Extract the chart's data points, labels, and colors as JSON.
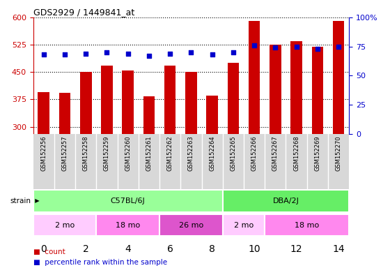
{
  "title": "GDS2929 / 1449841_at",
  "samples": [
    "GSM152256",
    "GSM152257",
    "GSM152258",
    "GSM152259",
    "GSM152260",
    "GSM152261",
    "GSM152262",
    "GSM152263",
    "GSM152264",
    "GSM152265",
    "GSM152266",
    "GSM152267",
    "GSM152268",
    "GSM152269",
    "GSM152270"
  ],
  "counts": [
    395,
    393,
    450,
    468,
    455,
    383,
    468,
    450,
    385,
    475,
    590,
    525,
    535,
    520,
    590
  ],
  "percentiles": [
    68,
    68,
    69,
    70,
    69,
    67,
    69,
    70,
    68,
    70,
    76,
    74,
    75,
    73,
    75
  ],
  "ylim_left": [
    280,
    600
  ],
  "ylim_right": [
    0,
    100
  ],
  "yticks_left": [
    300,
    375,
    450,
    525,
    600
  ],
  "yticks_right": [
    0,
    25,
    50,
    75,
    100
  ],
  "bar_color": "#cc0000",
  "dot_color": "#0000cc",
  "strain_groups": [
    {
      "label": "C57BL/6J",
      "start": 0,
      "end": 9,
      "color": "#99ff99"
    },
    {
      "label": "DBA/2J",
      "start": 9,
      "end": 15,
      "color": "#66ee66"
    }
  ],
  "age_groups": [
    {
      "label": "2 mo",
      "start": 0,
      "end": 3,
      "color": "#ffccff"
    },
    {
      "label": "18 mo",
      "start": 3,
      "end": 6,
      "color": "#ff88ee"
    },
    {
      "label": "26 mo",
      "start": 6,
      "end": 9,
      "color": "#dd55cc"
    },
    {
      "label": "2 mo",
      "start": 9,
      "end": 11,
      "color": "#ffccff"
    },
    {
      "label": "18 mo",
      "start": 11,
      "end": 15,
      "color": "#ff88ee"
    }
  ],
  "gsm_bg": "#d8d8d8",
  "bar_color_leg": "#cc0000",
  "dot_color_leg": "#0000cc",
  "tick_color_left": "#cc0000",
  "tick_color_right": "#0000cc"
}
